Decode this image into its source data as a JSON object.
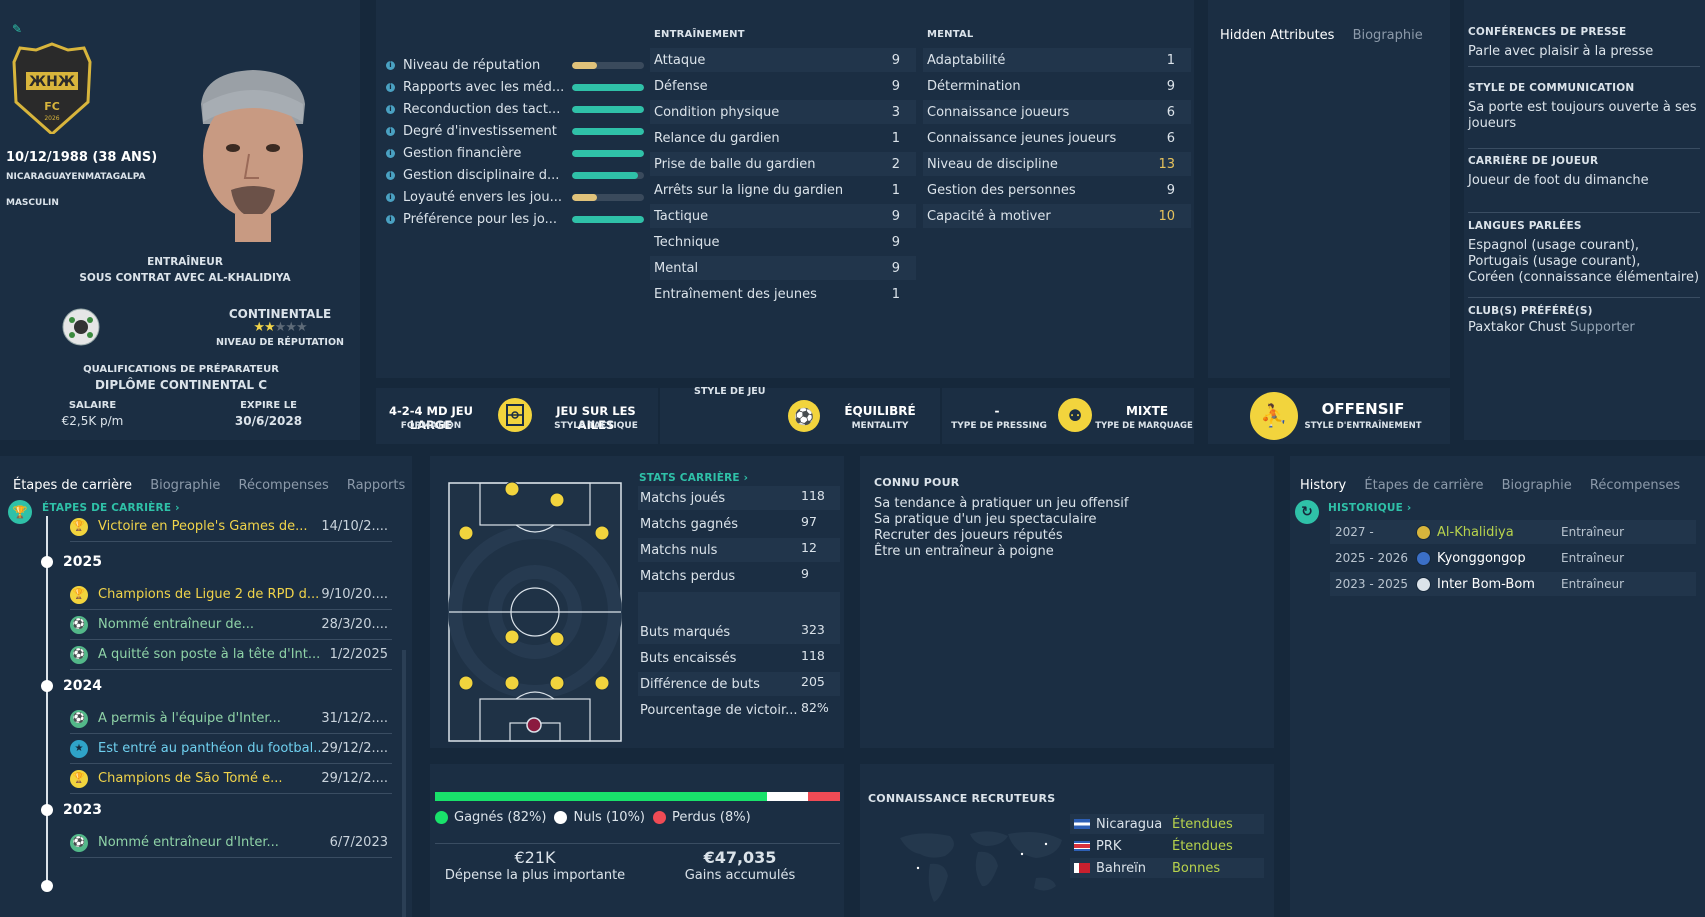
{
  "profile": {
    "dob": "10/12/1988 (38 ANS)",
    "nationality": "NICARAGUAYENMATAGALPA",
    "gender": "MASCULIN",
    "role": "ENTRAÎNEUR",
    "contract": "SOUS CONTRAT AVEC AL-KHALIDIYA",
    "reputation_level": "CONTINENTALE",
    "reputation_label": "NIVEAU DE RÉPUTATION",
    "reputation_stars": 2,
    "reputation_stars_max": 5,
    "qual_label": "QUALIFICATIONS DE PRÉPARATEUR",
    "qual_value": "DIPLÔME CONTINENTAL C",
    "salary_label": "SALAIRE",
    "salary_value": "€2,5K p/m",
    "expires_label": "EXPIRE LE",
    "expires_value": "30/6/2028",
    "crest_text": "FC",
    "crest_year": "2026"
  },
  "meters": [
    {
      "label": "Niveau de réputation",
      "level": 0.35,
      "color": "#e0c27a"
    },
    {
      "label": "Rapports avec les méd...",
      "level": 1.0,
      "color": "#2fc1a8"
    },
    {
      "label": "Reconduction des tact...",
      "level": 1.0,
      "color": "#2fc1a8"
    },
    {
      "label": "Degré d'investissement",
      "level": 1.0,
      "color": "#2fc1a8"
    },
    {
      "label": "Gestion financière",
      "level": 1.0,
      "color": "#2fc1a8"
    },
    {
      "label": "Gestion disciplinaire d...",
      "level": 0.92,
      "color": "#2fc1a8"
    },
    {
      "label": "Loyauté envers les jou...",
      "level": 0.35,
      "color": "#e0c27a"
    },
    {
      "label": "Préférence pour les jo...",
      "level": 1.0,
      "color": "#2fc1a8"
    }
  ],
  "training": {
    "title": "ENTRAÎNEMENT",
    "rows": [
      {
        "label": "Attaque",
        "value": "9"
      },
      {
        "label": "Défense",
        "value": "9"
      },
      {
        "label": "Condition physique",
        "value": "3"
      },
      {
        "label": "Relance du gardien",
        "value": "1"
      },
      {
        "label": "Prise de balle du gardien",
        "value": "2"
      },
      {
        "label": "Arrêts sur la ligne du gardien",
        "value": "1"
      },
      {
        "label": "Tactique",
        "value": "9"
      },
      {
        "label": "Technique",
        "value": "9"
      },
      {
        "label": "Mental",
        "value": "9"
      },
      {
        "label": "Entraînement des jeunes",
        "value": "1"
      }
    ]
  },
  "mental": {
    "title": "MENTAL",
    "rows": [
      {
        "label": "Adaptabilité",
        "value": "1"
      },
      {
        "label": "Détermination",
        "value": "9"
      },
      {
        "label": "Connaissance joueurs",
        "value": "6"
      },
      {
        "label": "Connaissance jeunes joueurs",
        "value": "6"
      },
      {
        "label": "Niveau de discipline",
        "value": "13"
      },
      {
        "label": "Gestion des personnes",
        "value": "9"
      },
      {
        "label": "Capacité à motiver",
        "value": "10"
      }
    ]
  },
  "hidden_tabs": [
    "Hidden Attributes",
    "Biographie"
  ],
  "right_info": [
    {
      "title": "CONFÉRENCES DE PRESSE",
      "lines": [
        "Parle avec plaisir à la presse"
      ]
    },
    {
      "title": "STYLE DE COMMUNICATION",
      "lines": [
        "Sa porte est toujours ouverte à ses",
        "joueurs"
      ]
    },
    {
      "title": "CARRIÈRE DE JOUEUR",
      "lines": [
        "Joueur de foot du dimanche"
      ]
    },
    {
      "title": "LANGUES PARLÉES",
      "lines": [
        "Espagnol (usage courant),",
        "Portugais (usage courant),",
        "Coréen (connaissance élémentaire)"
      ]
    }
  ],
  "fav_club": {
    "title": "CLUB(S) PRÉFÉRÉ(S)",
    "club": "Paxtakor Chust",
    "role": "Supporter"
  },
  "tactics": {
    "formation": "4-2-4 MD JEU LARGE",
    "formation_label": "FORMATION",
    "tactical_style": "JEU SUR LES AILES",
    "tactical_style_label": "STYLE TACTIQUE",
    "play_style_label": "STYLE DE JEU",
    "mentality": "ÉQUILIBRÉ",
    "mentality_label": "MENTALITY",
    "pressing": "-",
    "pressing_label": "TYPE DE PRESSING",
    "marking": "MIXTE",
    "marking_label": "TYPE DE MARQUAGE",
    "training_style": "OFFENSIF",
    "training_style_label": "STYLE D'ENTRAÎNEMENT"
  },
  "career_tabs": [
    "Étapes de carrière",
    "Biographie",
    "Récompenses",
    "Rapports"
  ],
  "career_header": "ÉTAPES DE CARRIÈRE",
  "timeline": {
    "first": {
      "text": "Victoire en People's Games de...",
      "date": "14/10/2....",
      "type": "trophy"
    },
    "years": [
      {
        "year": "2025",
        "items": [
          {
            "text": "Champions de Ligue 2 de RPD d...",
            "date": "9/10/20....",
            "type": "trophy"
          },
          {
            "text": "Nommé entraîneur de...",
            "date": "28/3/20....",
            "type": "job"
          },
          {
            "text": "A quitté son poste à la tête d'Int...",
            "date": "1/2/2025",
            "type": "job"
          }
        ]
      },
      {
        "year": "2024",
        "items": [
          {
            "text": "A permis à l'équipe d'Inter...",
            "date": "31/12/2....",
            "type": "job"
          },
          {
            "text": "Est entré au panthéon du footbal...",
            "date": "29/12/2....",
            "type": "fame"
          },
          {
            "text": "Champions de São Tomé e...",
            "date": "29/12/2....",
            "type": "trophy"
          }
        ]
      },
      {
        "year": "2023",
        "items": [
          {
            "text": "Nommé entraîneur d'Inter...",
            "date": "6/7/2023",
            "type": "job"
          }
        ]
      }
    ]
  },
  "stats": {
    "title": "STATS CARRIÈRE",
    "rows1": [
      {
        "label": "Matchs joués",
        "value": "118"
      },
      {
        "label": "Matchs gagnés",
        "value": "97"
      },
      {
        "label": "Matchs nuls",
        "value": "12"
      },
      {
        "label": "Matchs perdus",
        "value": "9"
      }
    ],
    "rows2": [
      {
        "label": "Buts marqués",
        "value": "323"
      },
      {
        "label": "Buts encaissés",
        "value": "118"
      },
      {
        "label": "Différence de buts",
        "value": "205"
      },
      {
        "label": "Pourcentage de victoir...",
        "value": "82%"
      }
    ]
  },
  "known_for": {
    "title": "CONNU POUR",
    "lines": [
      "Sa tendance à pratiquer un jeu offensif",
      "Sa pratique d'un jeu spectaculaire",
      "Recruter des joueurs réputés",
      "Être un entraîneur à poigne"
    ]
  },
  "results": {
    "won": 82,
    "drawn": 10,
    "lost": 8,
    "won_label": "Gagnés (82%)",
    "drawn_label": "Nuls (10%)",
    "lost_label": "Perdus (8%)",
    "won_color": "#19e26b",
    "drawn_color": "#ffffff",
    "lost_color": "#f04b55"
  },
  "money": {
    "biggest_value": "€21K",
    "biggest_label": "Dépense la plus importante",
    "earned_value": "€47,035",
    "earned_label": "Gains accumulés"
  },
  "history_tabs": [
    "History",
    "Étapes de carrière",
    "Biographie",
    "Récompenses"
  ],
  "history_header": "HISTORIQUE",
  "history": [
    {
      "years": "2027 -",
      "club": "Al-Khalidiya",
      "role": "Entraîneur",
      "highlight": true
    },
    {
      "years": "2025 - 2026",
      "club": "Kyonggongop",
      "role": "Entraîneur",
      "highlight": false
    },
    {
      "years": "2023 - 2025",
      "club": "Inter Bom-Bom",
      "role": "Entraîneur",
      "highlight": false
    }
  ],
  "recruit": {
    "title": "CONNAISSANCE RECRUTEURS",
    "rows": [
      {
        "country": "Nicaragua",
        "level": "Étendues"
      },
      {
        "country": "PRK",
        "level": "Étendues"
      },
      {
        "country": "Bahreïn",
        "level": "Bonnes"
      }
    ]
  }
}
